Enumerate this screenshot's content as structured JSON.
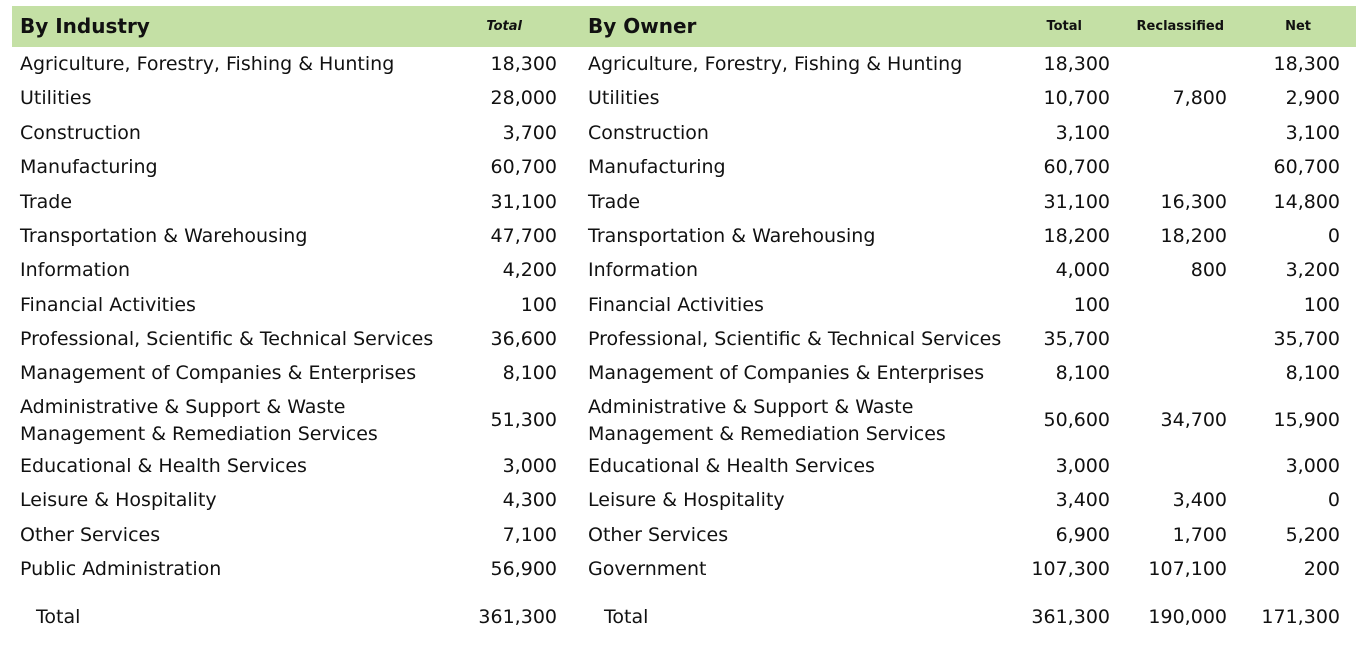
{
  "industry": {
    "title": "By Industry",
    "total_header": "Total",
    "rows": [
      {
        "name": "Agriculture, Forestry, Fishing & Hunting",
        "total": "18,300"
      },
      {
        "name": "Utilities",
        "total": "28,000"
      },
      {
        "name": "Construction",
        "total": "3,700"
      },
      {
        "name": "Manufacturing",
        "total": "60,700"
      },
      {
        "name": "Trade",
        "total": "31,100"
      },
      {
        "name": "Transportation & Warehousing",
        "total": "47,700"
      },
      {
        "name": "Information",
        "total": "4,200"
      },
      {
        "name": "Financial Activities",
        "total": "100"
      },
      {
        "name": "Professional, Scientific & Technical Services",
        "total": "36,600"
      },
      {
        "name": "Management of Companies & Enterprises",
        "total": "8,100"
      },
      {
        "name": "Administrative & Support & Waste Management & Remediation Services",
        "total": "51,300"
      },
      {
        "name": "Educational & Health Services",
        "total": "3,000"
      },
      {
        "name": "Leisure & Hospitality",
        "total": "4,300"
      },
      {
        "name": "Other Services",
        "total": "7,100"
      },
      {
        "name": "Public Administration",
        "total": "56,900"
      }
    ],
    "summary": {
      "label": "Total",
      "total": "361,300"
    }
  },
  "owner": {
    "title": "By Owner",
    "total_header": "Total",
    "reclassified_header": "Reclassified",
    "net_header": "Net",
    "rows": [
      {
        "name": "Agriculture, Forestry, Fishing & Hunting",
        "total": "18,300",
        "reclassified": "",
        "net": "18,300"
      },
      {
        "name": "Utilities",
        "total": "10,700",
        "reclassified": "7,800",
        "net": "2,900"
      },
      {
        "name": "Construction",
        "total": "3,100",
        "reclassified": "",
        "net": "3,100"
      },
      {
        "name": "Manufacturing",
        "total": "60,700",
        "reclassified": "",
        "net": "60,700"
      },
      {
        "name": "Trade",
        "total": "31,100",
        "reclassified": "16,300",
        "net": "14,800"
      },
      {
        "name": "Transportation & Warehousing",
        "total": "18,200",
        "reclassified": "18,200",
        "net": "0"
      },
      {
        "name": "Information",
        "total": "4,000",
        "reclassified": "800",
        "net": "3,200"
      },
      {
        "name": "Financial Activities",
        "total": "100",
        "reclassified": "",
        "net": "100"
      },
      {
        "name": "Professional, Scientific & Technical Services",
        "total": "35,700",
        "reclassified": "",
        "net": "35,700"
      },
      {
        "name": "Management of Companies & Enterprises",
        "total": "8,100",
        "reclassified": "",
        "net": "8,100"
      },
      {
        "name": "Administrative & Support & Waste Management & Remediation Services",
        "total": "50,600",
        "reclassified": "34,700",
        "net": "15,900"
      },
      {
        "name": "Educational & Health Services",
        "total": "3,000",
        "reclassified": "",
        "net": "3,000"
      },
      {
        "name": "Leisure & Hospitality",
        "total": "3,400",
        "reclassified": "3,400",
        "net": "0"
      },
      {
        "name": "Other Services",
        "total": "6,900",
        "reclassified": "1,700",
        "net": "5,200"
      },
      {
        "name": "Government",
        "total": "107,300",
        "reclassified": "107,100",
        "net": "200"
      }
    ],
    "summary": {
      "label": "Total",
      "total": "361,300",
      "reclassified": "190,000",
      "net": "171,300"
    }
  }
}
